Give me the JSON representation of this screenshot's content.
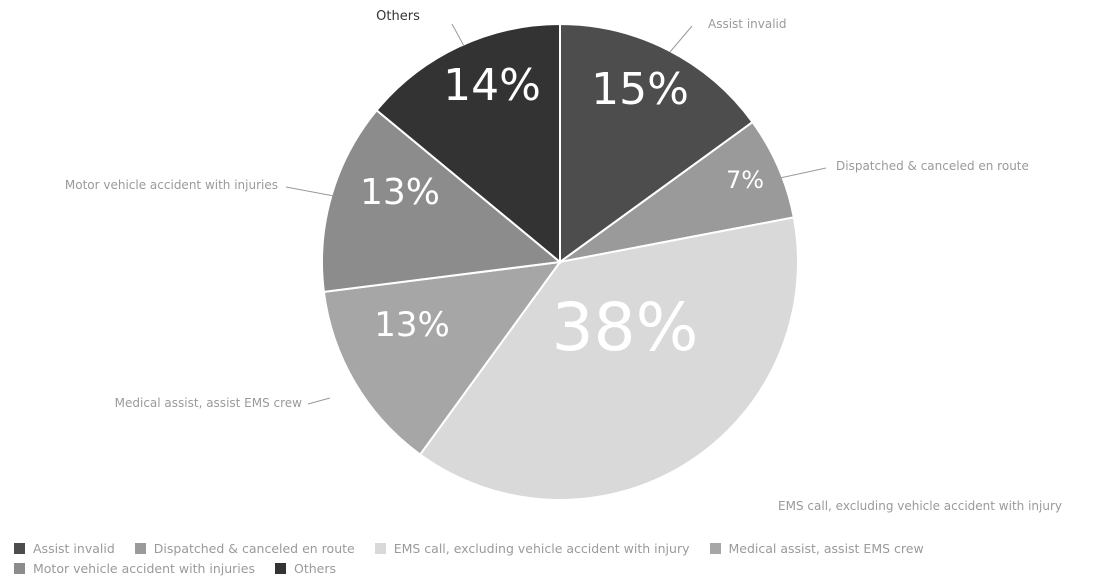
{
  "chart_data": {
    "type": "pie",
    "title": "",
    "slices": [
      {
        "label": "Assist invalid",
        "value": 15,
        "display": "15%",
        "color": "#4d4d4d"
      },
      {
        "label": "Dispatched & canceled en route",
        "value": 7,
        "display": "7%",
        "color": "#9a9a9a"
      },
      {
        "label": "EMS call, excluding vehicle accident with injury",
        "value": 38,
        "display": "38%",
        "color": "#d9d9d9"
      },
      {
        "label": "Medical assist, assist EMS crew",
        "value": 13,
        "display": "13%",
        "color": "#a6a6a6"
      },
      {
        "label": "Motor vehicle accident with injuries",
        "value": 13,
        "display": "13%",
        "color": "#8c8c8c"
      },
      {
        "label": "Others",
        "value": 14,
        "display": "14%",
        "color": "#333333"
      }
    ],
    "legend_position": "bottom"
  }
}
